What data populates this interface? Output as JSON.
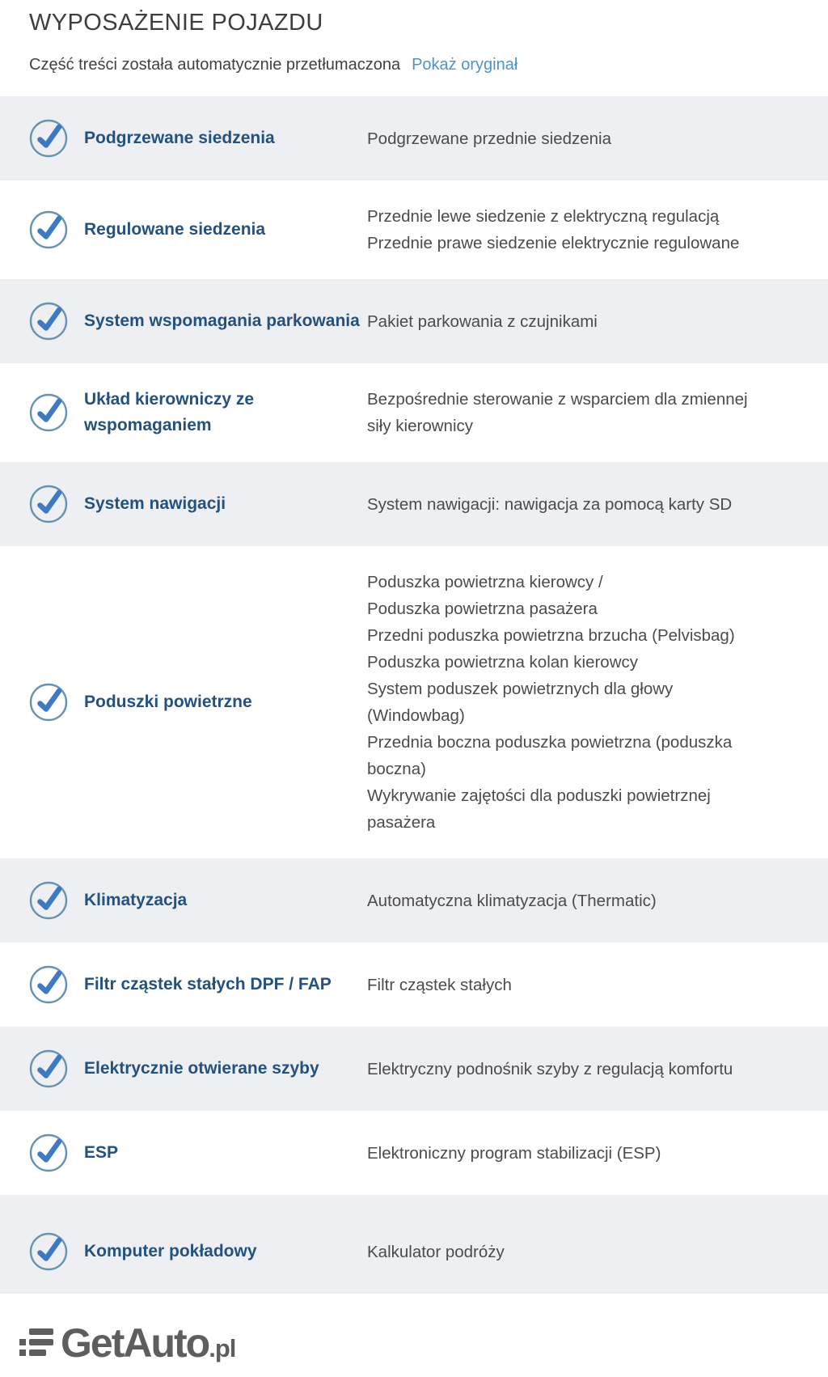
{
  "header": {
    "title": "WYPOSAŻENIE POJAZDU",
    "notice": "Część treści została automatycznie przetłumaczona",
    "show_original_label": "Pokaż oryginał"
  },
  "equipment": {
    "rows": [
      {
        "label": "Podgrzewane siedzenia",
        "descriptions": [
          "Podgrzewane przednie siedzenia"
        ]
      },
      {
        "label": "Regulowane siedzenia",
        "descriptions": [
          "Przednie lewe siedzenie z elektryczną regulacją",
          "Przednie prawe siedzenie elektrycznie regulowane"
        ]
      },
      {
        "label": "System wspomagania parkowania",
        "descriptions": [
          "Pakiet parkowania z czujnikami"
        ]
      },
      {
        "label": "Układ kierowniczy ze wspomaganiem",
        "descriptions": [
          "Bezpośrednie sterowanie z wsparciem dla zmiennej siły kierownicy"
        ]
      },
      {
        "label": "System nawigacji",
        "descriptions": [
          "System nawigacji: nawigacja za pomocą karty SD"
        ]
      },
      {
        "label": "Poduszki powietrzne",
        "descriptions": [
          "Poduszka powietrzna kierowcy /",
          "Poduszka powietrzna pasażera",
          "Przedni poduszka powietrzna brzucha (Pelvisbag)",
          "Poduszka powietrzna kolan kierowcy",
          "System poduszek powietrznych dla głowy (Windowbag)",
          "Przednia boczna poduszka powietrzna (poduszka boczna)",
          "Wykrywanie zajętości dla poduszki powietrznej pasażera"
        ]
      },
      {
        "label": "Klimatyzacja",
        "descriptions": [
          "Automatyczna klimatyzacja (Thermatic)"
        ]
      },
      {
        "label": "Filtr cząstek stałych DPF / FAP",
        "descriptions": [
          "Filtr cząstek stałych"
        ]
      },
      {
        "label": "Elektrycznie otwierane szyby",
        "descriptions": [
          "Elektryczny podnośnik szyby z regulacją komfortu"
        ]
      },
      {
        "label": "ESP",
        "descriptions": [
          "Elektroniczny program stabilizacji (ESP)"
        ]
      },
      {
        "label": "Komputer pokładowy",
        "descriptions": [
          "Kalkulator podróży"
        ]
      }
    ]
  },
  "logo": {
    "name": "GetAuto",
    "tld": ".pl"
  },
  "icons": {
    "row_marker": "check-icon",
    "logo_glyph": "list-bars-icon"
  },
  "colors": {
    "accent_check_blue": "#3d7ac1",
    "label_navy": "#24517d",
    "link_blue": "#4d93cb",
    "row_stripe": "#edeff3",
    "check_ring": "#6892ae",
    "logo_gray": "#58585a",
    "description_gray": "#4b4b4e",
    "heading_gray": "#3e3e40"
  }
}
